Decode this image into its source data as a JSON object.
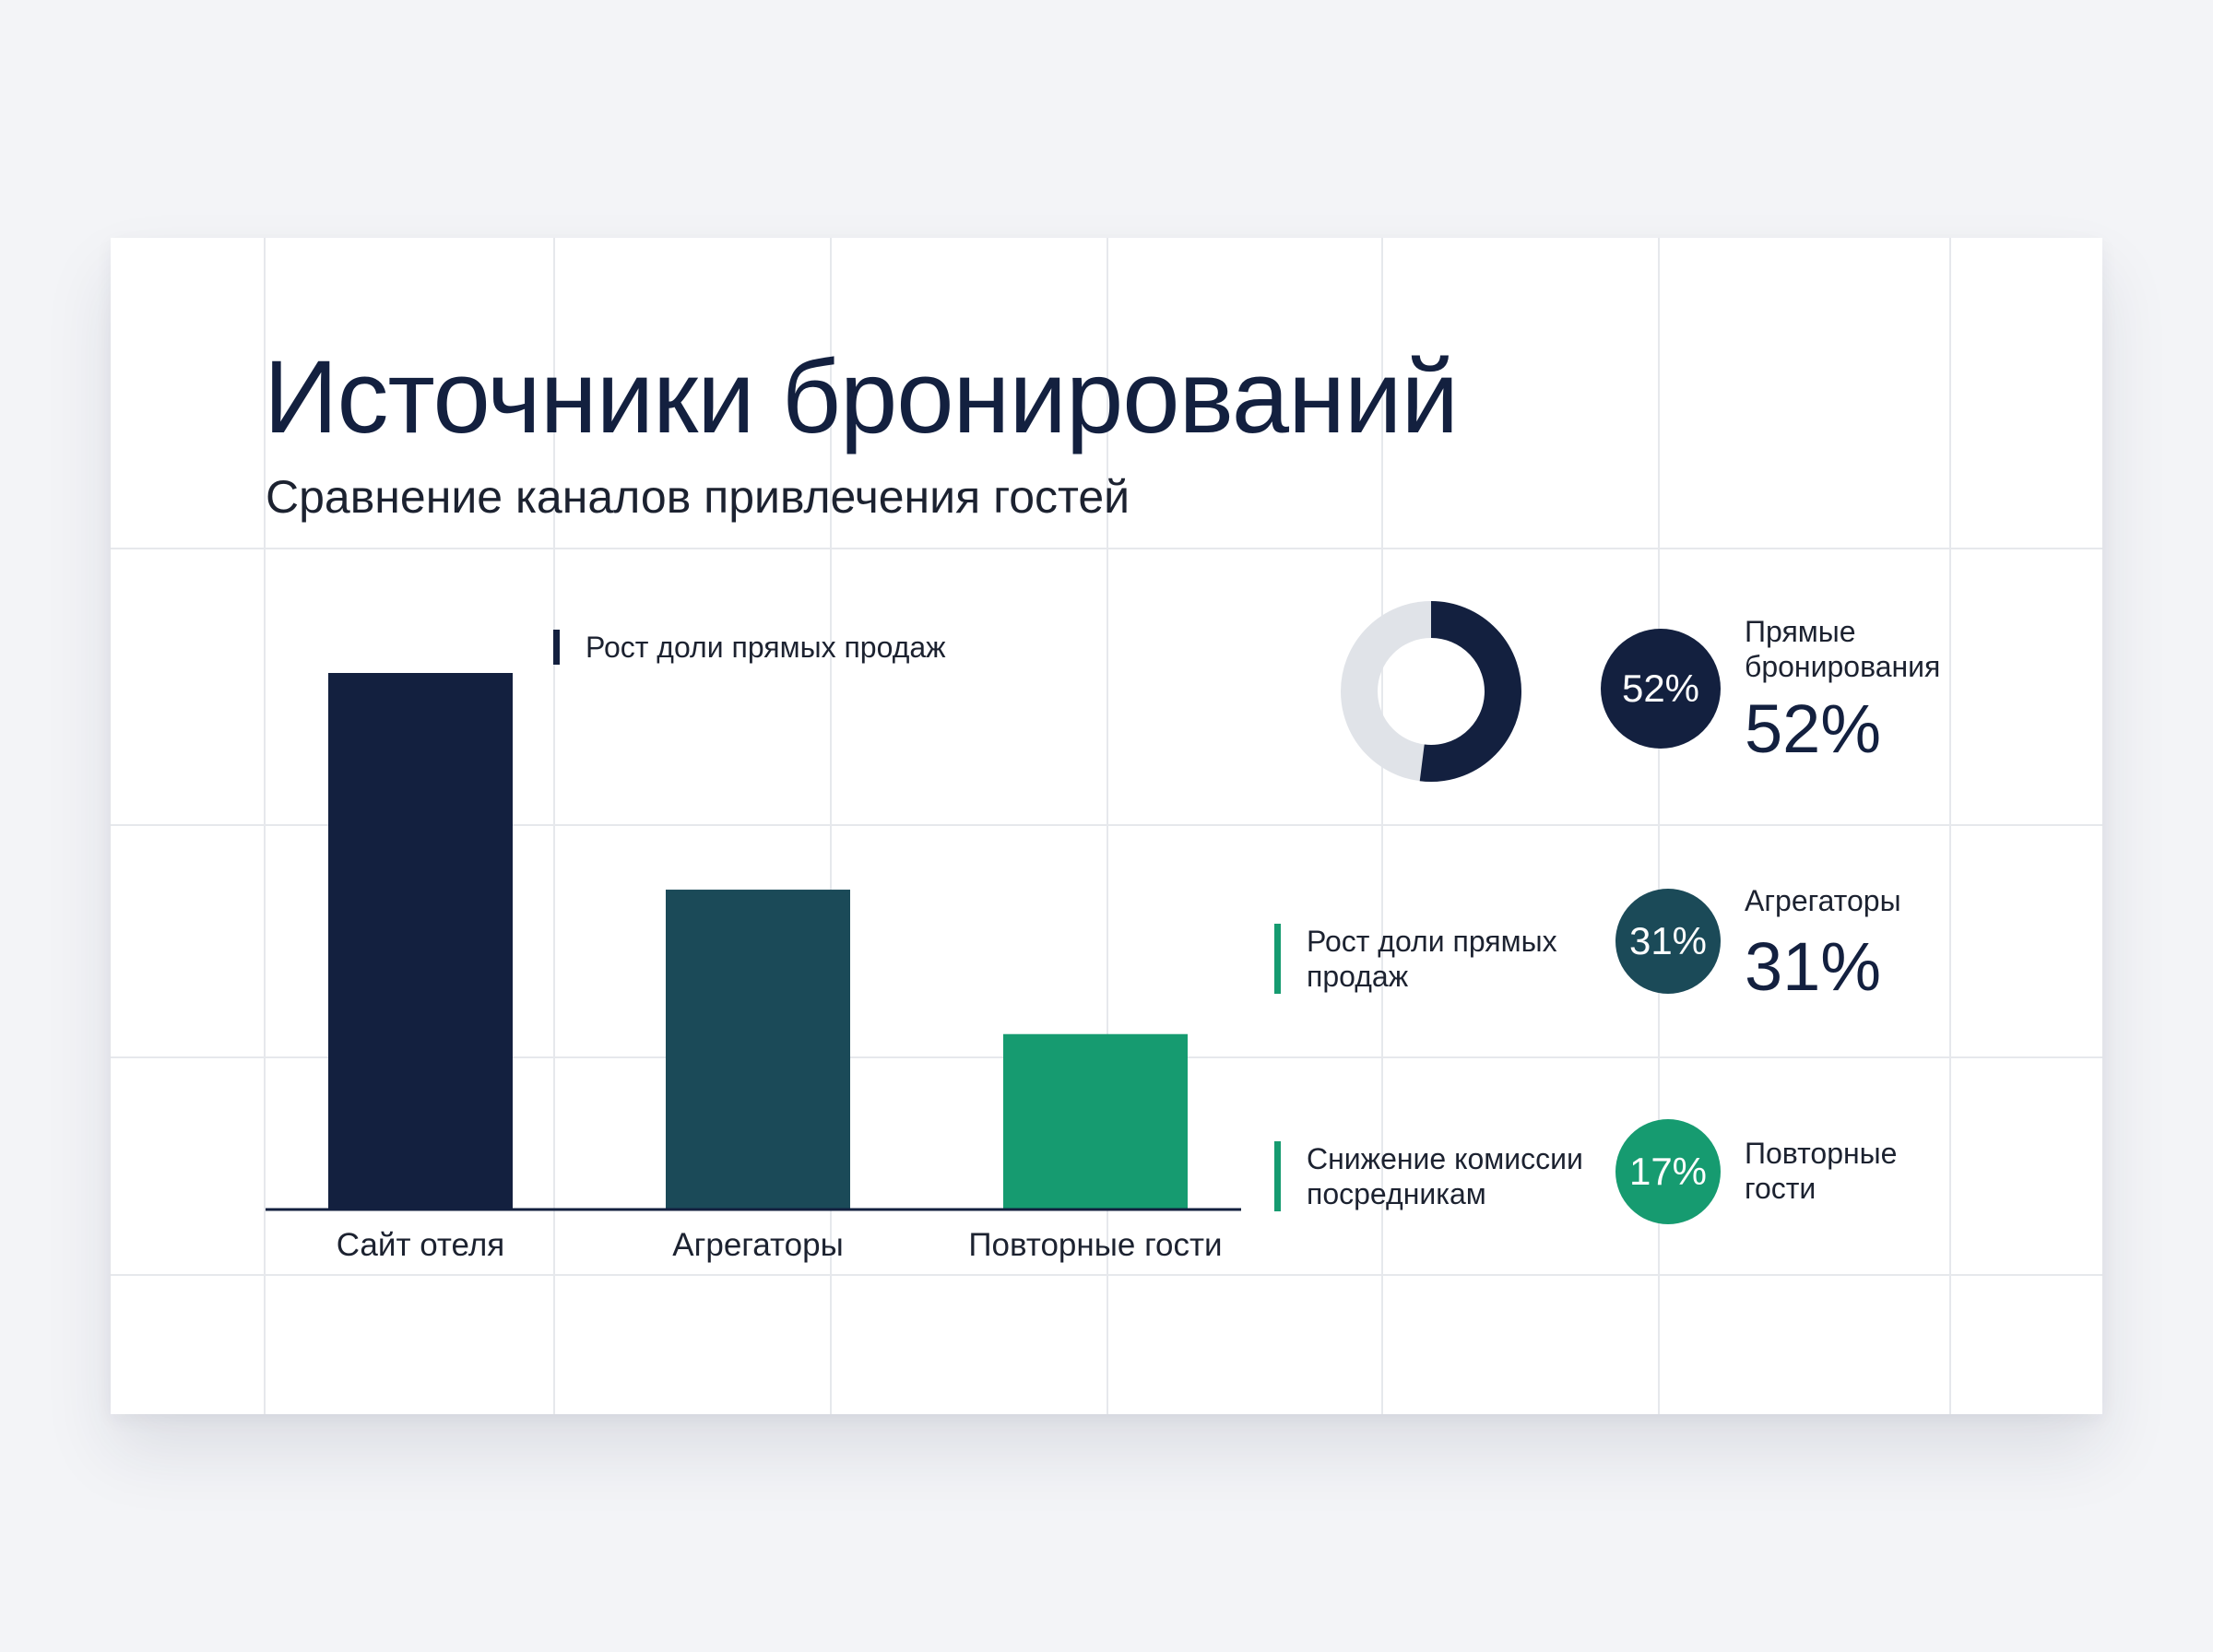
{
  "slide": {
    "title": "Источники бронирований",
    "subtitle": "Сравнение каналов привлечения гостей"
  },
  "chart_data": [
    {
      "type": "bar",
      "categories": [
        "Сайт отеля",
        "Агрегаторы",
        "Повторные гости"
      ],
      "values": [
        52,
        31,
        17
      ],
      "colors": [
        "#13203f",
        "#1b4a58",
        "#169b70"
      ],
      "ylim": [
        0,
        52
      ],
      "grid": true,
      "annotation": "Рост доли прямых продаж"
    },
    {
      "type": "pie",
      "variant": "donut",
      "value": 52,
      "colors": {
        "value": "#13203f",
        "rest": "#e0e3e8"
      }
    }
  ],
  "legend": [
    {
      "badge": "52%",
      "label": "Прямые бронирования",
      "value": "52%",
      "color": "#13203f"
    },
    {
      "badge": "31%",
      "label": "Агрегаторы",
      "value": "31%",
      "color": "#1b4a58"
    },
    {
      "badge": "17%",
      "label": "Повторные гости",
      "value": "",
      "color": "#169b70"
    }
  ],
  "notes": [
    {
      "text": "Рост доли прямых продаж"
    },
    {
      "text": "Снижение комиссии посредникам"
    }
  ]
}
